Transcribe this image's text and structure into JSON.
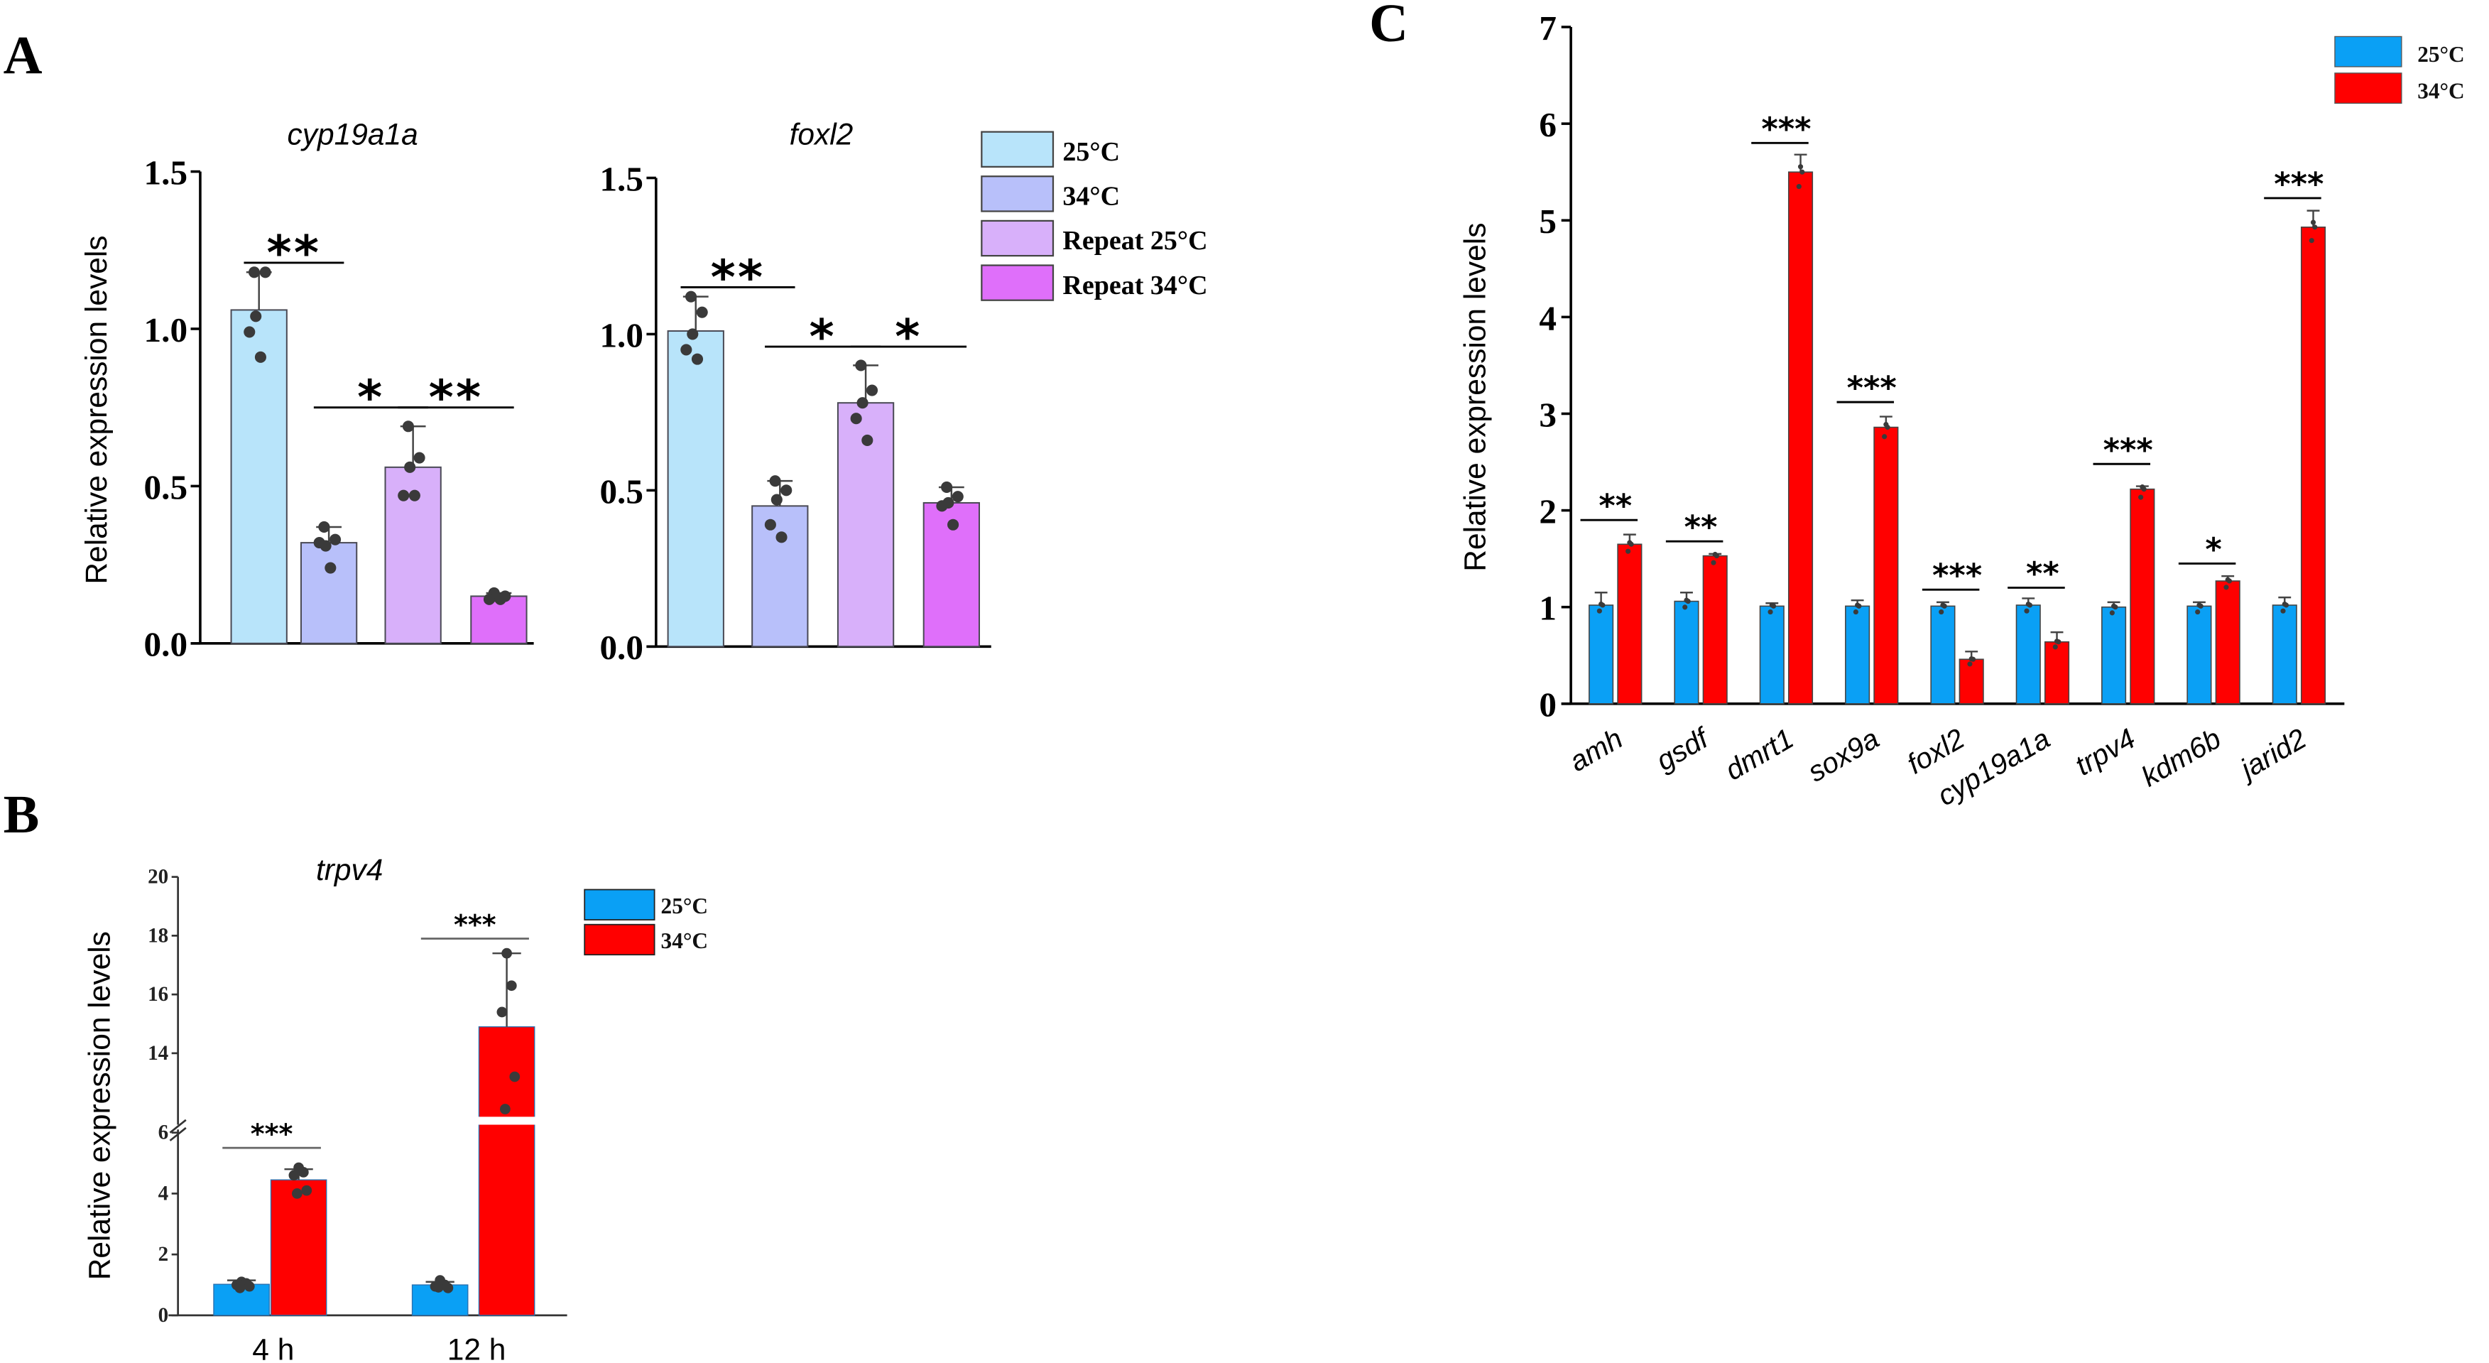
{
  "figure": {
    "panel_labels": [
      "A",
      "B",
      "C"
    ]
  },
  "chart_data": [
    {
      "id": "A1",
      "panel": "A",
      "type": "bar",
      "title": "cyp19a1a",
      "xlabel": "",
      "ylabel": "Relative expression levels",
      "ylim": [
        0,
        1.5
      ],
      "yticks": [
        0.0,
        0.5,
        1.0,
        1.5
      ],
      "ytick_labels": [
        "0.0",
        "0.5",
        "1.0",
        "1.5"
      ],
      "grid": false,
      "categories": [
        "25°C",
        "34°C",
        "Repeat 25°C",
        "Repeat 34°C"
      ],
      "colors": [
        "#b8e4fa",
        "#b8c0fa",
        "#d8b0fa",
        "#df6ffa"
      ],
      "values": [
        1.06,
        0.32,
        0.56,
        0.15
      ],
      "error_upper": [
        1.18,
        0.37,
        0.69,
        0.16
      ],
      "points": [
        [
          1.18,
          1.18,
          1.04,
          0.99,
          0.91
        ],
        [
          0.37,
          0.33,
          0.31,
          0.32,
          0.24
        ],
        [
          0.69,
          0.59,
          0.56,
          0.47,
          0.47
        ],
        [
          0.16,
          0.15,
          0.15,
          0.14,
          0.14
        ]
      ],
      "significance": [
        {
          "from": 0,
          "to": 1,
          "label": "**",
          "y": 1.21
        },
        {
          "from": 1,
          "to": 2,
          "label": "*",
          "y": 0.75
        },
        {
          "from": 2,
          "to": 3,
          "label": "**",
          "y": 0.75
        }
      ]
    },
    {
      "id": "A2",
      "panel": "A",
      "type": "bar",
      "title": "foxl2",
      "xlabel": "",
      "ylabel": "",
      "ylim": [
        0,
        1.5
      ],
      "yticks": [
        0.0,
        0.5,
        1.0,
        1.5
      ],
      "ytick_labels": [
        "0.0",
        "0.5",
        "1.0",
        "1.5"
      ],
      "grid": false,
      "categories": [
        "25°C",
        "34°C",
        "Repeat 25°C",
        "Repeat 34°C"
      ],
      "colors": [
        "#b8e4fa",
        "#b8c0fa",
        "#d8b0fa",
        "#df6ffa"
      ],
      "values": [
        1.01,
        0.45,
        0.78,
        0.46
      ],
      "error_upper": [
        1.12,
        0.53,
        0.9,
        0.51
      ],
      "points": [
        [
          1.12,
          1.07,
          1.0,
          0.95,
          0.92
        ],
        [
          0.53,
          0.5,
          0.47,
          0.39,
          0.35
        ],
        [
          0.9,
          0.82,
          0.78,
          0.73,
          0.66
        ],
        [
          0.51,
          0.48,
          0.46,
          0.45,
          0.39
        ]
      ],
      "significance": [
        {
          "from": 0,
          "to": 1,
          "label": "**",
          "y": 1.15
        },
        {
          "from": 1,
          "to": 2,
          "label": "*",
          "y": 0.96
        },
        {
          "from": 2,
          "to": 3,
          "label": "*",
          "y": 0.96
        }
      ],
      "legend": {
        "placement": "right",
        "entries": [
          "25°C",
          "34°C",
          "Repeat 25°C",
          "Repeat 34°C"
        ]
      }
    },
    {
      "id": "B",
      "panel": "B",
      "type": "bar",
      "title": "trpv4",
      "xlabel": "",
      "ylabel": "Relative expression levels",
      "axis_break": {
        "lower": [
          0,
          6
        ],
        "upper": [
          12,
          20
        ]
      },
      "yticks_lower": [
        0,
        2,
        4,
        6
      ],
      "yticks_upper": [
        14,
        16,
        18,
        20
      ],
      "grid": false,
      "categories": [
        "4 h",
        "12 h"
      ],
      "series": [
        {
          "name": "25°C",
          "color": "#0aa0f5",
          "values": [
            1.02,
            1.0
          ],
          "error_upper": [
            1.15,
            1.1
          ],
          "points": [
            [
              1.1,
              1.05,
              1.0,
              0.95,
              0.9
            ],
            [
              1.15,
              1.0,
              0.95,
              0.9,
              0.92
            ]
          ]
        },
        {
          "name": "34°C",
          "color": "#ff0000",
          "values": [
            4.45,
            14.9
          ],
          "error_upper": [
            4.8,
            17.4
          ],
          "points": [
            [
              4.85,
              4.7,
              4.6,
              4.1,
              4.0
            ],
            [
              17.4,
              16.3,
              15.4,
              13.2,
              12.1
            ]
          ]
        }
      ],
      "significance": [
        {
          "group": 0,
          "label": "***",
          "y": 5.5
        },
        {
          "group": 1,
          "label": "***",
          "y": 17.9
        }
      ],
      "legend": {
        "placement": "top-right",
        "entries": [
          "25°C",
          "34°C"
        ]
      }
    },
    {
      "id": "C",
      "panel": "C",
      "type": "bar",
      "title": "",
      "xlabel": "",
      "ylabel": "Relative expression levels",
      "ylim": [
        0,
        7
      ],
      "yticks": [
        0,
        1,
        2,
        3,
        4,
        5,
        6,
        7
      ],
      "grid": false,
      "categories": [
        "amh",
        "gsdf",
        "dmrt1",
        "sox9a",
        "foxl2",
        "cyp19a1a",
        "trpv4",
        "kdm6b",
        "jarid2"
      ],
      "series": [
        {
          "name": "25°C",
          "color": "#0aa0f5",
          "values": [
            1.02,
            1.06,
            1.01,
            1.01,
            1.01,
            1.02,
            1.0,
            1.01,
            1.02
          ],
          "error_upper": [
            1.15,
            1.15,
            1.04,
            1.07,
            1.05,
            1.09,
            1.05,
            1.05,
            1.1
          ]
        },
        {
          "name": "34°C",
          "color": "#ff0000",
          "values": [
            1.65,
            1.53,
            5.5,
            2.86,
            0.46,
            0.64,
            2.22,
            1.27,
            4.93
          ],
          "error_upper": [
            1.75,
            1.55,
            5.68,
            2.97,
            0.54,
            0.74,
            2.25,
            1.32,
            5.1
          ]
        }
      ],
      "significance": [
        "**",
        "**",
        "***",
        "***",
        "***",
        "**",
        "***",
        "*",
        "***"
      ],
      "significance_y": [
        1.9,
        1.68,
        5.8,
        3.12,
        1.18,
        1.2,
        2.48,
        1.45,
        5.23
      ],
      "legend": {
        "placement": "top-right",
        "entries": [
          "25°C",
          "34°C"
        ]
      }
    }
  ]
}
